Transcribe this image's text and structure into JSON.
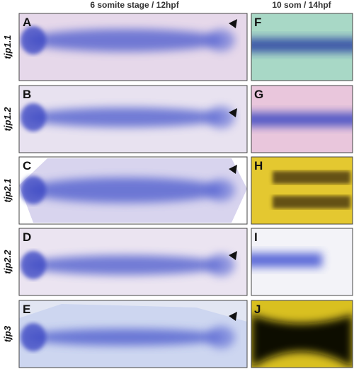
{
  "header": {
    "left": "6 somite stage / 12hpf",
    "right": "10 som / 14hpf"
  },
  "rows": [
    {
      "gene": "tjp1.1",
      "left_panel": "A",
      "right_panel": "F"
    },
    {
      "gene": "tjp1.2",
      "left_panel": "B",
      "right_panel": "G"
    },
    {
      "gene": "tjp2.1",
      "left_panel": "C",
      "right_panel": "H"
    },
    {
      "gene": "tjp2.2",
      "left_panel": "D",
      "right_panel": "I"
    },
    {
      "gene": "tjp3",
      "left_panel": "E",
      "right_panel": "J"
    }
  ]
}
